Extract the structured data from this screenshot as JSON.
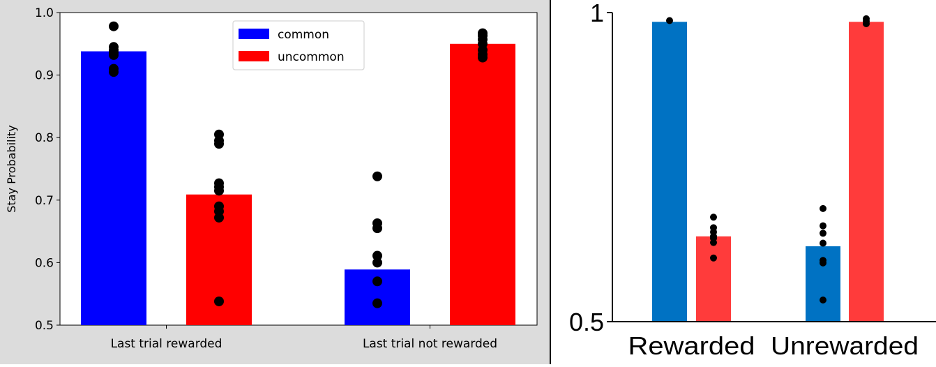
{
  "chart_data": [
    {
      "type": "bar",
      "categories": [
        "Last trial rewarded",
        "Last trial not rewarded"
      ],
      "ylabel": "Stay Probability",
      "ylim": [
        0.5,
        1.0
      ],
      "yticks": [
        "0.5",
        "0.6",
        "0.7",
        "0.8",
        "0.9",
        "1.0"
      ],
      "legend": "top-center",
      "series": [
        {
          "name": "common",
          "color": "#0000ff",
          "values": [
            0.938,
            0.589
          ],
          "points": [
            [
              0.978,
              0.945,
              0.94,
              0.936,
              0.932,
              0.91,
              0.905
            ],
            [
              0.738,
              0.663,
              0.655,
              0.611,
              0.6,
              0.57,
              0.535
            ]
          ]
        },
        {
          "name": "uncommon",
          "color": "#ff0000",
          "values": [
            0.709,
            0.95
          ],
          "points": [
            [
              0.805,
              0.795,
              0.79,
              0.727,
              0.721,
              0.715,
              0.69,
              0.682,
              0.672,
              0.538
            ],
            [
              0.967,
              0.963,
              0.957,
              0.95,
              0.94,
              0.933,
              0.928
            ]
          ]
        }
      ]
    },
    {
      "type": "bar",
      "categories": [
        "Rewarded",
        "Unrewarded"
      ],
      "ylim": [
        0.5,
        1.0
      ],
      "yticks": [
        "0.5",
        "1"
      ],
      "series": [
        {
          "color": "#0072c3",
          "values": [
            0.985,
            0.622
          ],
          "points": [
            [
              0.987
            ],
            [
              0.683,
              0.655,
              0.643,
              0.627,
              0.599,
              0.595,
              0.535
            ]
          ]
        },
        {
          "color": "#ff3b3b",
          "values": [
            0.638,
            0.985
          ],
          "points": [
            [
              0.669,
              0.652,
              0.645,
              0.638,
              0.635,
              0.628,
              0.603
            ],
            [
              0.99,
              0.986,
              0.982
            ]
          ]
        }
      ]
    }
  ]
}
